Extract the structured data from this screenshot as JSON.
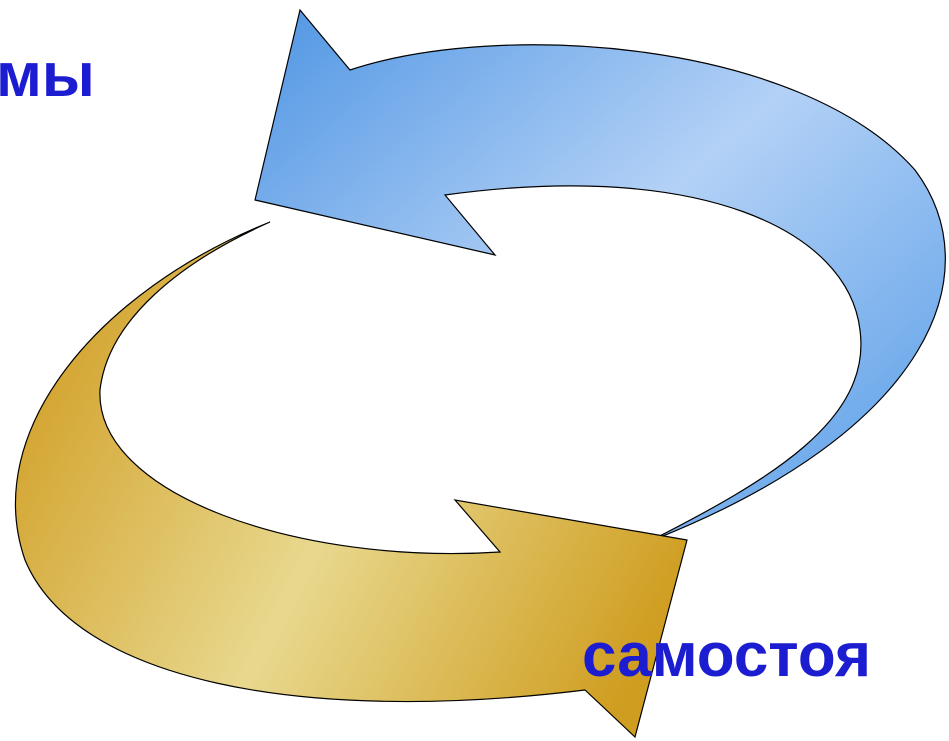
{
  "labels": {
    "top": "мы",
    "bottom": "самостоя"
  }
}
